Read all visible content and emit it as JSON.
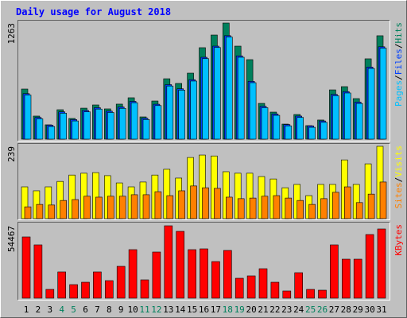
{
  "chart_data": [
    {
      "type": "bar",
      "title": "Daily usage for August 2018",
      "ylim": [
        0,
        1263
      ],
      "yticks": [
        1263
      ],
      "legend_separator": "/",
      "series": [
        {
          "name": "Hits",
          "color": "#00805c",
          "values": [
            545,
            251,
            156,
            320,
            225,
            337,
            372,
            329,
            381,
            450,
            242,
            415,
            657,
            606,
            718,
            995,
            1133,
            1263,
            1012,
            865,
            389,
            294,
            164,
            268,
            147,
            208,
            536,
            571,
            441,
            874,
            1125
          ]
        },
        {
          "name": "Files",
          "color": "#0040ff",
          "values": [
            495,
            236,
            152,
            297,
            213,
            312,
            342,
            305,
            350,
            411,
            228,
            380,
            593,
            548,
            647,
            891,
            1012,
            1126,
            906,
            629,
            357,
            274,
            159,
            251,
            144,
            198,
            487,
            517,
            403,
            784,
            1005
          ]
        },
        {
          "name": "Pages",
          "color": "#00c0ff",
          "values": [
            480,
            221,
            137,
            282,
            198,
            297,
            327,
            290,
            335,
            396,
            213,
            365,
            578,
            533,
            632,
            876,
            997,
            1111,
            891,
            614,
            342,
            259,
            144,
            236,
            129,
            183,
            472,
            502,
            388,
            769,
            990
          ]
        }
      ]
    },
    {
      "type": "bar",
      "ylim": [
        0,
        239
      ],
      "yticks": [
        239
      ],
      "legend_separator": "/",
      "series": [
        {
          "name": "Visits",
          "color": "#ffff00",
          "values": [
            105,
            92,
            105,
            123,
            144,
            150,
            152,
            142,
            118,
            105,
            121,
            144,
            163,
            134,
            202,
            210,
            207,
            155,
            150,
            150,
            139,
            131,
            102,
            113,
            76,
            113,
            113,
            194,
            113,
            181,
            239
          ]
        },
        {
          "name": "Sites",
          "color": "#ff8000",
          "values": [
            39,
            47,
            45,
            60,
            63,
            74,
            71,
            74,
            74,
            79,
            79,
            89,
            76,
            92,
            108,
            102,
            100,
            71,
            66,
            68,
            74,
            76,
            68,
            60,
            47,
            66,
            87,
            105,
            53,
            81,
            121
          ]
        }
      ]
    },
    {
      "type": "bar",
      "ylim": [
        0,
        54467
      ],
      "yticks": [
        54467
      ],
      "series": [
        {
          "name": "KBytes",
          "color": "#ff0000",
          "values": [
            46087,
            40101,
            6584,
            19751,
            10175,
            11971,
            19751,
            13168,
            23941,
            36510,
            13766,
            34715,
            54467,
            50277,
            36510,
            37109,
            27532,
            35912,
            14963,
            16759,
            22145,
            11971,
            5387,
            19153,
            6584,
            5985,
            40101,
            29328,
            29328,
            47882,
            52072
          ]
        }
      ],
      "categories": [
        "1",
        "2",
        "3",
        "4",
        "5",
        "6",
        "7",
        "8",
        "9",
        "10",
        "11",
        "12",
        "13",
        "14",
        "15",
        "16",
        "17",
        "18",
        "19",
        "20",
        "21",
        "22",
        "23",
        "24",
        "25",
        "26",
        "27",
        "28",
        "29",
        "30",
        "31"
      ],
      "category_colors": [
        "#000000",
        "#000000",
        "#000000",
        "#00805c",
        "#00805c",
        "#000000",
        "#000000",
        "#000000",
        "#000000",
        "#000000",
        "#00805c",
        "#00805c",
        "#000000",
        "#000000",
        "#000000",
        "#000000",
        "#000000",
        "#00805c",
        "#00805c",
        "#000000",
        "#000000",
        "#000000",
        "#000000",
        "#000000",
        "#00805c",
        "#00805c",
        "#000000",
        "#000000",
        "#000000",
        "#000000",
        "#000000"
      ]
    }
  ]
}
